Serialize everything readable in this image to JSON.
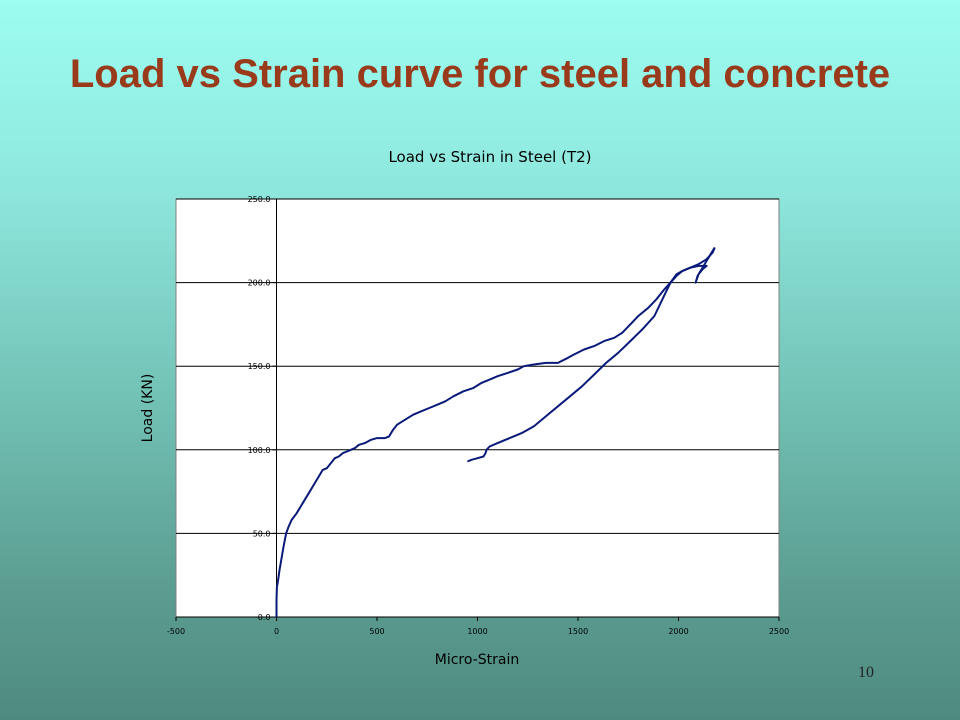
{
  "slide": {
    "title": "Load vs Strain curve for steel and concrete",
    "page_number": "10"
  },
  "colors": {
    "title": "#993a1b",
    "series": "#0a1a7a",
    "plot_bg": "#ffffff",
    "grid": "#000000"
  },
  "chart_data": {
    "type": "line",
    "title": "Load vs Strain in Steel (T2)",
    "xlabel": "Micro-Strain",
    "ylabel": "Load (KN)",
    "xlim": [
      -500,
      2500
    ],
    "ylim": [
      0,
      250
    ],
    "xticks": [
      -500,
      0,
      500,
      1000,
      1500,
      2000,
      2500
    ],
    "yticks": [
      0,
      50,
      100,
      150,
      200,
      250
    ],
    "xtick_labels": [
      "-500",
      "0",
      "500",
      "1000",
      "1500",
      "2000",
      "2500"
    ],
    "ytick_labels": [
      "0.0",
      "50.0",
      "100.0",
      "150.0",
      "200.0",
      "250.0"
    ],
    "grid": "horizontal",
    "legend": "none",
    "series": [
      {
        "points": [
          [
            0,
            0
          ],
          [
            0,
            10
          ],
          [
            2,
            18
          ],
          [
            8,
            22
          ],
          [
            15,
            28
          ],
          [
            25,
            35
          ],
          [
            35,
            42
          ],
          [
            48,
            50
          ],
          [
            60,
            54
          ],
          [
            75,
            58
          ],
          [
            100,
            62
          ],
          [
            130,
            68
          ],
          [
            160,
            74
          ],
          [
            190,
            80
          ],
          [
            210,
            84
          ],
          [
            230,
            88
          ],
          [
            250,
            89
          ],
          [
            270,
            92
          ],
          [
            290,
            95
          ],
          [
            310,
            96
          ],
          [
            330,
            98
          ],
          [
            350,
            99
          ],
          [
            370,
            100
          ],
          [
            390,
            101
          ],
          [
            410,
            103
          ],
          [
            440,
            104
          ],
          [
            470,
            106
          ],
          [
            500,
            107
          ],
          [
            540,
            107
          ],
          [
            560,
            108
          ],
          [
            580,
            112
          ],
          [
            600,
            115
          ],
          [
            640,
            118
          ],
          [
            680,
            121
          ],
          [
            720,
            123
          ],
          [
            760,
            125
          ],
          [
            800,
            127
          ],
          [
            840,
            129
          ],
          [
            880,
            132
          ],
          [
            930,
            135
          ],
          [
            980,
            137
          ],
          [
            1020,
            140
          ],
          [
            1060,
            142
          ],
          [
            1100,
            144
          ],
          [
            1150,
            146
          ],
          [
            1200,
            148
          ],
          [
            1230,
            150
          ],
          [
            1280,
            151
          ],
          [
            1340,
            152
          ],
          [
            1400,
            152
          ],
          [
            1450,
            155
          ],
          [
            1480,
            157
          ],
          [
            1530,
            160
          ],
          [
            1580,
            162
          ],
          [
            1630,
            165
          ],
          [
            1680,
            167
          ],
          [
            1720,
            170
          ],
          [
            1760,
            175
          ],
          [
            1800,
            180
          ],
          [
            1850,
            185
          ],
          [
            1890,
            190
          ],
          [
            1930,
            196
          ],
          [
            1960,
            200
          ],
          [
            1990,
            204
          ],
          [
            2020,
            207
          ],
          [
            2060,
            209
          ],
          [
            2100,
            211
          ],
          [
            2140,
            214
          ],
          [
            2170,
            218
          ],
          [
            2180,
            221
          ]
        ]
      },
      {
        "points": [
          [
            2180,
            221
          ],
          [
            2160,
            217
          ],
          [
            2140,
            213
          ],
          [
            2120,
            209
          ],
          [
            2110,
            207
          ],
          [
            2095,
            204
          ],
          [
            2085,
            200
          ],
          [
            2100,
            205
          ],
          [
            2120,
            208
          ],
          [
            2140,
            210
          ],
          [
            2100,
            210
          ],
          [
            2060,
            209
          ],
          [
            2020,
            207
          ],
          [
            1990,
            205
          ],
          [
            1960,
            200
          ],
          [
            1920,
            190
          ],
          [
            1880,
            180
          ],
          [
            1820,
            172
          ],
          [
            1760,
            165
          ],
          [
            1700,
            158
          ],
          [
            1640,
            152
          ],
          [
            1580,
            145
          ],
          [
            1520,
            138
          ],
          [
            1460,
            132
          ],
          [
            1400,
            126
          ],
          [
            1340,
            120
          ],
          [
            1280,
            114
          ],
          [
            1220,
            110
          ],
          [
            1160,
            107
          ],
          [
            1100,
            104
          ],
          [
            1060,
            102
          ],
          [
            1045,
            100
          ],
          [
            1040,
            98
          ],
          [
            1030,
            96
          ],
          [
            1000,
            95
          ],
          [
            970,
            94
          ],
          [
            950,
            93
          ]
        ]
      }
    ]
  }
}
